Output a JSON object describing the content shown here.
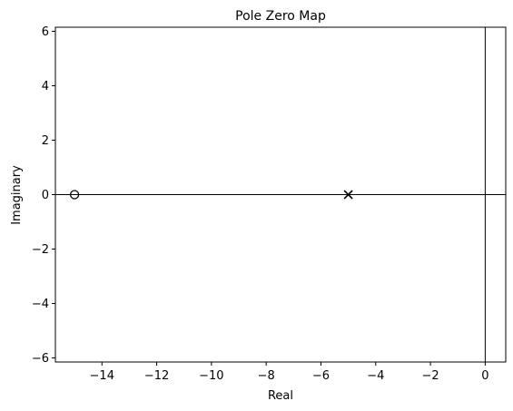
{
  "chart_data": {
    "type": "scatter",
    "title": "Pole Zero Map",
    "xlabel": "Real",
    "ylabel": "Imaginary",
    "xlim": [
      -15.7,
      0.75
    ],
    "ylim": [
      -6.15,
      6.15
    ],
    "xticks": [
      -14,
      -12,
      -10,
      -8,
      -6,
      -4,
      -2,
      0
    ],
    "yticks": [
      -6,
      -4,
      -2,
      0,
      2,
      4,
      6
    ],
    "grid": false,
    "zeros": [
      {
        "x": -15,
        "y": 0
      }
    ],
    "poles": [
      {
        "x": -5,
        "y": 0
      }
    ],
    "marker_color": "#000000"
  }
}
